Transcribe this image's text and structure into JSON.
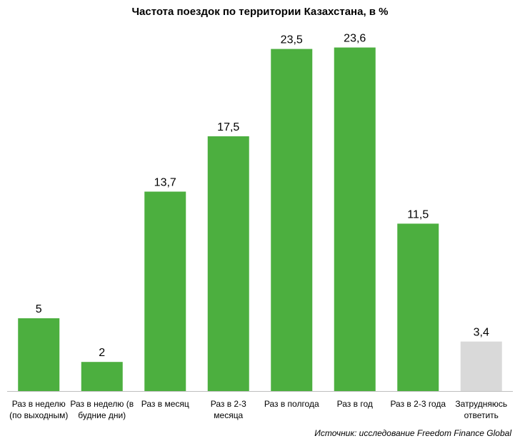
{
  "chart_data": {
    "type": "bar",
    "title": "Частота поездок по территории Казахстана, в %",
    "categories": [
      [
        "Раз в неделю",
        "(по выходным)"
      ],
      [
        "Раз в неделю (в",
        "будние дни)"
      ],
      [
        "Раз в месяц"
      ],
      [
        "Раз в 2-3",
        "месяца"
      ],
      [
        "Раз в полгода"
      ],
      [
        "Раз в год"
      ],
      [
        "Раз в 2-3 года"
      ],
      [
        "Затрудняюсь",
        "ответить"
      ]
    ],
    "values": [
      5,
      2,
      13.7,
      17.5,
      23.5,
      23.6,
      11.5,
      3.4
    ],
    "value_labels": [
      "5",
      "2",
      "13,7",
      "17,5",
      "23,5",
      "23,6",
      "11,5",
      "3,4"
    ],
    "colors": [
      "#4caf3f",
      "#4caf3f",
      "#4caf3f",
      "#4caf3f",
      "#4caf3f",
      "#4caf3f",
      "#4caf3f",
      "#d9d9d9"
    ],
    "ylim": [
      0,
      25
    ],
    "grid": false,
    "legend": "none"
  },
  "source": "Источник: исследование Freedom Finance Global"
}
